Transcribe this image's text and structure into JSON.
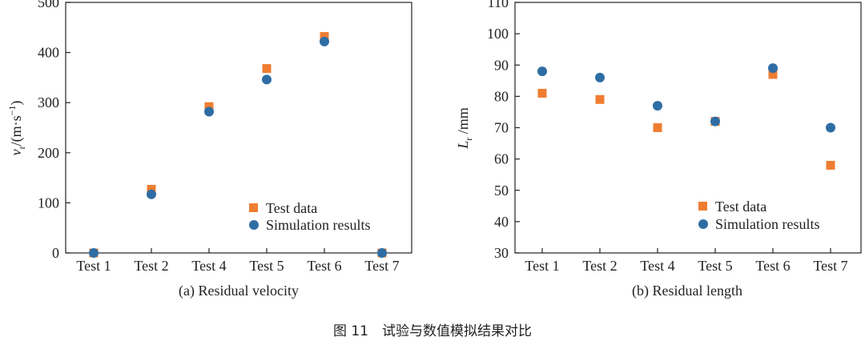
{
  "chart_data": [
    {
      "type": "scatter",
      "panel_label": "(a) Residual velocity",
      "ylabel_var": "v",
      "ylabel_sub": "r",
      "ylabel_unit_open": "/(m·s",
      "ylabel_unit_exp": "−1",
      "ylabel_unit_close": ")",
      "categories": [
        "Test 1",
        "Test 2",
        "Test 4",
        "Test 5",
        "Test 6",
        "Test 7"
      ],
      "ylim": [
        0,
        500
      ],
      "yticks": [
        0,
        100,
        200,
        300,
        400,
        500
      ],
      "legend_position": "bottom-right",
      "series": [
        {
          "name": "Test data",
          "marker": "square",
          "color": "#ef7d31",
          "values": [
            0,
            127,
            292,
            368,
            432,
            0
          ]
        },
        {
          "name": "Simulation results",
          "marker": "circle",
          "color": "#2e6da4",
          "values": [
            0,
            117,
            282,
            346,
            422,
            0
          ]
        }
      ]
    },
    {
      "type": "scatter",
      "panel_label": "(b) Residual length",
      "ylabel_var": "L",
      "ylabel_sub": "r",
      "ylabel_unit_open": " /mm",
      "ylabel_unit_exp": "",
      "ylabel_unit_close": "",
      "categories": [
        "Test 1",
        "Test 2",
        "Test 4",
        "Test 5",
        "Test 6",
        "Test 7"
      ],
      "ylim": [
        30,
        110
      ],
      "yticks": [
        30,
        40,
        50,
        60,
        70,
        80,
        90,
        100,
        110
      ],
      "legend_position": "bottom-right",
      "series": [
        {
          "name": "Test data",
          "marker": "square",
          "color": "#ef7d31",
          "values": [
            81,
            79,
            70,
            72,
            87,
            58
          ]
        },
        {
          "name": "Simulation results",
          "marker": "circle",
          "color": "#2e6da4",
          "values": [
            88,
            86,
            77,
            72,
            89,
            70
          ]
        }
      ]
    }
  ],
  "figure_caption": "图 11　试验与数值模拟结果对比"
}
